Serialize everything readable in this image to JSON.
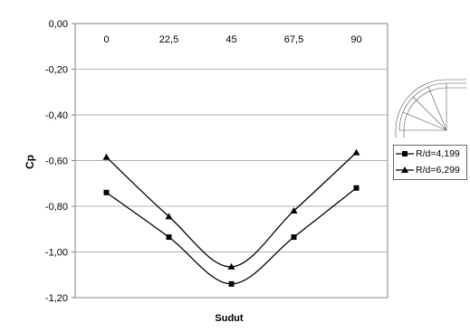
{
  "chart_data": {
    "type": "line",
    "title": "",
    "xlabel": "Sudut",
    "ylabel": "Cp",
    "categories": [
      "0",
      "22,5",
      "45",
      "67,5",
      "90"
    ],
    "x": [
      0,
      22.5,
      45,
      67.5,
      90
    ],
    "ylim": [
      -1.2,
      0
    ],
    "y_ticks": [
      "0,00",
      "-0,20",
      "-0,40",
      "-0,60",
      "-0,80",
      "-1,00",
      "-1,20"
    ],
    "x_axis_position": "top",
    "grid": true,
    "legend_position": "right",
    "series": [
      {
        "name": "R/d=4,199",
        "marker": "square",
        "values": [
          -0.74,
          -0.935,
          -1.14,
          -0.935,
          -0.72
        ]
      },
      {
        "name": "R/d=6,299",
        "marker": "triangle",
        "values": [
          -0.585,
          -0.845,
          -1.065,
          -0.82,
          -0.565
        ]
      }
    ]
  }
}
